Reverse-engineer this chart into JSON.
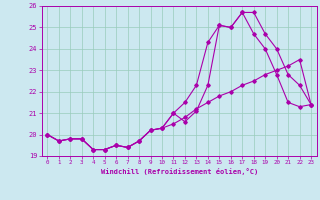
{
  "xlabel": "Windchill (Refroidissement éolien,°C)",
  "ylabel": "",
  "xlim": [
    -0.5,
    23.5
  ],
  "ylim": [
    19,
    26
  ],
  "yticks": [
    19,
    20,
    21,
    22,
    23,
    24,
    25,
    26
  ],
  "xticks": [
    0,
    1,
    2,
    3,
    4,
    5,
    6,
    7,
    8,
    9,
    10,
    11,
    12,
    13,
    14,
    15,
    16,
    17,
    18,
    19,
    20,
    21,
    22,
    23
  ],
  "bg_color": "#cce8f0",
  "line_color": "#aa00aa",
  "grid_color": "#99ccbb",
  "lines": [
    {
      "x": [
        0,
        1,
        2,
        3,
        4,
        5,
        6,
        7,
        8,
        9,
        10,
        11,
        12,
        13,
        14,
        15,
        16,
        17,
        18,
        19,
        20,
        21,
        22,
        23
      ],
      "y": [
        20.0,
        19.7,
        19.8,
        19.8,
        19.3,
        19.3,
        19.5,
        19.4,
        19.7,
        20.2,
        20.3,
        21.0,
        20.6,
        21.1,
        22.3,
        25.1,
        25.0,
        25.7,
        25.7,
        24.7,
        24.0,
        22.8,
        22.3,
        21.4
      ]
    },
    {
      "x": [
        0,
        1,
        2,
        3,
        4,
        5,
        6,
        7,
        8,
        9,
        10,
        11,
        12,
        13,
        14,
        15,
        16,
        17,
        18,
        19,
        20,
        21,
        22,
        23
      ],
      "y": [
        20.0,
        19.7,
        19.8,
        19.8,
        19.3,
        19.3,
        19.5,
        19.4,
        19.7,
        20.2,
        20.3,
        21.0,
        21.5,
        22.3,
        24.3,
        25.1,
        25.0,
        25.7,
        24.7,
        24.0,
        22.8,
        21.5,
        21.3,
        21.4
      ]
    },
    {
      "x": [
        0,
        1,
        2,
        3,
        4,
        5,
        6,
        7,
        8,
        9,
        10,
        11,
        12,
        13,
        14,
        15,
        16,
        17,
        18,
        19,
        20,
        21,
        22,
        23
      ],
      "y": [
        20.0,
        19.7,
        19.8,
        19.8,
        19.3,
        19.3,
        19.5,
        19.4,
        19.7,
        20.2,
        20.3,
        20.5,
        20.8,
        21.2,
        21.5,
        21.8,
        22.0,
        22.3,
        22.5,
        22.8,
        23.0,
        23.2,
        23.5,
        21.4
      ]
    }
  ]
}
